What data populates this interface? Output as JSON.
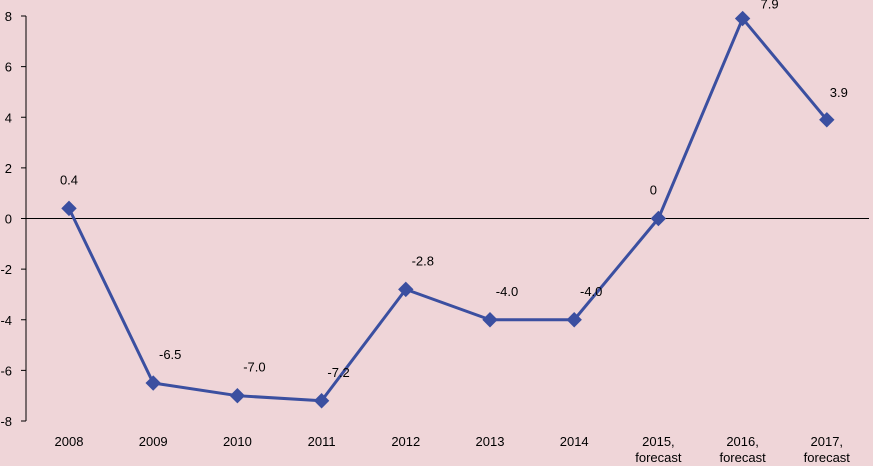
{
  "chart_data": {
    "type": "line",
    "categories": [
      "2008",
      "2009",
      "2010",
      "2011",
      "2012",
      "2013",
      "2014",
      "2015, forecast",
      "2016, forecast",
      "2017, forecast"
    ],
    "category_lines": [
      [
        "2008"
      ],
      [
        "2009"
      ],
      [
        "2010"
      ],
      [
        "2011"
      ],
      [
        "2012"
      ],
      [
        "2013"
      ],
      [
        "2014"
      ],
      [
        "2015,",
        "forecast"
      ],
      [
        "2016,",
        "forecast"
      ],
      [
        "2017,",
        "forecast"
      ]
    ],
    "series": [
      {
        "values": [
          0.4,
          -6.5,
          -7.0,
          -7.2,
          -2.8,
          -4.0,
          -4.0,
          0,
          7.9,
          3.9
        ],
        "data_labels": [
          "0.4",
          "-6.5",
          "-7.0",
          "-7.2",
          "-2.8",
          "-4.0",
          "-4.0",
          "0",
          "7.9",
          "3.9"
        ],
        "color": "#3b4fa0",
        "marker": "diamond"
      }
    ],
    "y_ticks": [
      8,
      6,
      4,
      2,
      0,
      -2,
      -4,
      -6,
      -8
    ],
    "ylim": [
      -8,
      8
    ],
    "title": "",
    "xlabel": "",
    "ylabel": "",
    "grid": false,
    "legend": "none",
    "background": "#efd5d8"
  }
}
